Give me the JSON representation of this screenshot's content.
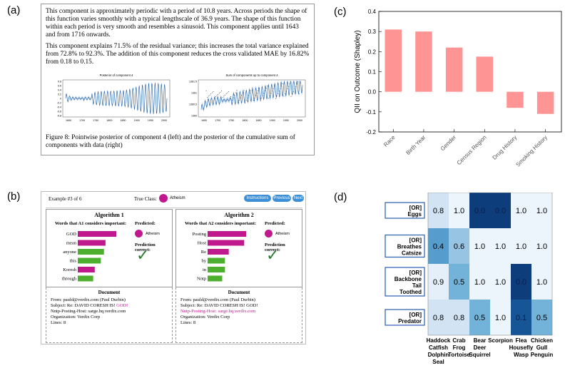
{
  "labels": {
    "a": "(a)",
    "b": "(b)",
    "c": "(c)",
    "d": "(d)"
  },
  "panel_a": {
    "para1": "This component is approximately periodic with a period of 10.8 years. Across periods the shape of this function varies smoothly with a typical lengthscale of 36.9 years. The shape of this function within each period is very smooth and resembles a sinusoid. This component applies until 1643 and from 1716 onwards.",
    "para2": "This component explains 71.5% of the residual variance; this increases the total variance explained from 72.8% to 92.3%. The addition of this component reduces the cross validated MAE by 16.82% from 0.18 to 0.15.",
    "plot_left_title": "Posterior of component 4",
    "plot_right_title": "Sum of components up to component 4",
    "left_yticks": [
      "0.8",
      "0.6",
      "0.4",
      "0.2",
      "0",
      "-0.2",
      "-0.4",
      "-0.6",
      "-0.8"
    ],
    "left_xticks": [
      "1650",
      "1700",
      "1750",
      "1800",
      "1850",
      "1900",
      "1950",
      "2000"
    ],
    "right_yticks": [
      "1361.5",
      "1361",
      "1360.5",
      "1360"
    ],
    "right_xticks": [
      "1650",
      "1700",
      "1750",
      "1800",
      "1850",
      "1900",
      "1950",
      "2000"
    ],
    "caption": "Figure 8: Pointwise posterior of component 4 (left) and the posterior of the cumulative sum of components with data (right)"
  },
  "panel_b": {
    "example": "Example #3 of 6",
    "true_class_label": "True Class:",
    "true_class": "Atheism",
    "buttons": [
      "Instructions",
      "Previous",
      "Next"
    ],
    "algo1": {
      "title": "Algorithm 1",
      "words_header": "Words that A1 considers important:",
      "words": [
        "GOD",
        "mean",
        "anyone",
        "this",
        "Koresh",
        "through"
      ],
      "weights": [
        1.0,
        0.72,
        0.68,
        0.6,
        0.44,
        0.4
      ],
      "colors": [
        "#c0198e",
        "#c0198e",
        "#4caf2e",
        "#4caf2e",
        "#c0198e",
        "#4caf2e"
      ]
    },
    "algo2": {
      "title": "Algorithm 2",
      "words_header": "Words that A2 considers important:",
      "words": [
        "Posting",
        "Host",
        "Re",
        "by",
        "in",
        "Nntp"
      ],
      "weights": [
        1.0,
        0.95,
        0.55,
        0.45,
        0.45,
        0.38
      ],
      "colors": [
        "#c0198e",
        "#c0198e",
        "#c0198e",
        "#4caf2e",
        "#4caf2e",
        "#4caf2e"
      ]
    },
    "predicted_label": "Predicted:",
    "predicted": "Atheism",
    "prediction_correct": "Prediction correct:",
    "check": "✓",
    "document_title": "Document",
    "doc1_lines": [
      "From: pauld@verdix.com (Paul Durbin)",
      "Subject: Re: DAVID CORESH IS! GOD!",
      "Nntp-Posting-Host: sarge.hq.verdix.com",
      "Organization: Verdix Corp",
      "Lines: 8"
    ],
    "doc2_lines": [
      "From: pauld@verdix.com (Paul Durbin)",
      "Subject: Re: DAVID CORESH IS! GOD!",
      "Nntp-Posting-Host: sarge.hq.verdix.com",
      "Organization: Verdix Corp",
      "Lines: 8"
    ]
  },
  "chart_data": [
    {
      "type": "bar",
      "categories": [
        "Race",
        "Birth Year",
        "Gender",
        "Census Region",
        "Drug History",
        "Smoking History"
      ],
      "values": [
        0.31,
        0.3,
        0.22,
        0.175,
        -0.08,
        -0.11
      ],
      "ylabel": "QII on Outcome (Shapley)",
      "xlabel": "",
      "title": "",
      "ylim": [
        -0.2,
        0.4
      ],
      "yticks": [
        "-0.2",
        "-0.1",
        "0.0",
        "0.1",
        "0.2",
        "0.3",
        "0.4"
      ],
      "bar_color": "#ff9494",
      "grid": false
    },
    {
      "type": "heatmap",
      "rows": [
        "[OR] Eggs",
        "[OR] Breathes Catsize",
        "[OR] Backbone Tail Toothed",
        "[OR] Predator"
      ],
      "columns": [
        "Haddock Catfish Dolphin Seal",
        "Crab Frog Tortoise",
        "Bear Deer Squirrel",
        "Scorpion",
        "Flea Housefly Wasp",
        "Chicken Gull Penguin"
      ],
      "values": [
        [
          0.8,
          1.0,
          0.0,
          0.0,
          1.0,
          1.0
        ],
        [
          0.4,
          0.6,
          1.0,
          1.0,
          1.0,
          1.0
        ],
        [
          0.9,
          0.5,
          1.0,
          1.0,
          0.0,
          1.0
        ],
        [
          0.8,
          0.8,
          0.5,
          1.0,
          0.1,
          0.5
        ]
      ],
      "cell_labels": [
        [
          "0.8",
          "1.0",
          "0.0",
          "0.0",
          "1.0",
          "1.0"
        ],
        [
          "0.4",
          "0.6",
          "1.0",
          "1.0",
          "1.0",
          "1.0"
        ],
        [
          "0.9",
          "0.5",
          "1.0",
          "1.0",
          "0.0",
          "1.0"
        ],
        [
          "0.8",
          "0.8",
          "0.5",
          "1.0",
          "0.1",
          "0.5"
        ]
      ],
      "row_lines": [
        [
          "[OR]",
          "Eggs"
        ],
        [
          "[OR]",
          "Breathes",
          "Catsize"
        ],
        [
          "[OR]",
          "Backbone",
          "Tail",
          "Toothed"
        ],
        [
          "[OR]",
          "Predator"
        ]
      ],
      "col_lines": [
        [
          "Haddock",
          "Catfish",
          "Dolphin",
          "Seal"
        ],
        [
          "Crab",
          "Frog",
          "Tortoise"
        ],
        [
          "Bear",
          "Deer",
          "Squirrel"
        ],
        [
          "Scorpion"
        ],
        [
          "Flea",
          "Housefly",
          "Wasp"
        ],
        [
          "Chicken",
          "Gull",
          "Penguin"
        ]
      ],
      "colormap": "Blues"
    }
  ]
}
